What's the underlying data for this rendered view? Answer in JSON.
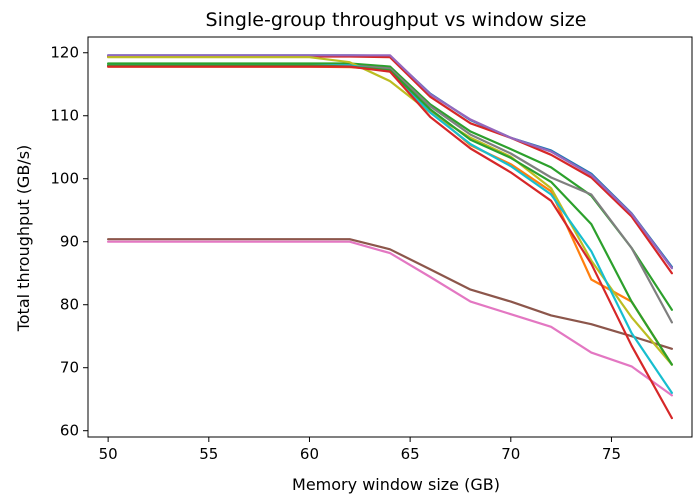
{
  "chart_data": {
    "type": "line",
    "title": "Single-group throughput vs window size",
    "xlabel": "Memory window size (GB)",
    "ylabel": "Total throughput (GB/s)",
    "xlim": [
      49,
      79
    ],
    "ylim": [
      59,
      122.5
    ],
    "xticks": [
      50,
      55,
      60,
      65,
      70,
      75
    ],
    "yticks": [
      60,
      70,
      80,
      90,
      100,
      110,
      120
    ],
    "grid": false,
    "legend": "none",
    "x": [
      50,
      52,
      54,
      56,
      58,
      60,
      62,
      64,
      66,
      68,
      70,
      72,
      74,
      76,
      78
    ],
    "series": [
      {
        "color": "#1f77b4",
        "values": [
          119.6,
          119.6,
          119.6,
          119.6,
          119.6,
          119.6,
          119.6,
          119.5,
          113.5,
          109.3,
          106.5,
          104.5,
          100.8,
          94.5,
          86.0
        ]
      },
      {
        "color": "#ff7f0e",
        "values": [
          117.8,
          117.8,
          117.8,
          117.8,
          117.8,
          117.8,
          117.7,
          117.3,
          110.8,
          105.3,
          102.3,
          98.0,
          84.0,
          80.5,
          70.5
        ]
      },
      {
        "color": "#2ca02c",
        "values": [
          118.3,
          118.3,
          118.3,
          118.3,
          118.3,
          118.3,
          118.3,
          117.8,
          111.8,
          107.5,
          104.7,
          101.8,
          97.3,
          89.0,
          79.2
        ]
      },
      {
        "color": "#d62728",
        "values": [
          119.4,
          119.4,
          119.4,
          119.4,
          119.4,
          119.4,
          119.4,
          119.3,
          113.0,
          108.8,
          106.5,
          103.8,
          100.2,
          94.0,
          85.0
        ]
      },
      {
        "color": "#9467bd",
        "values": [
          119.6,
          119.6,
          119.6,
          119.6,
          119.6,
          119.6,
          119.6,
          119.6,
          113.4,
          109.4,
          106.5,
          104.3,
          100.6,
          94.4,
          85.8
        ]
      },
      {
        "color": "#8c564b",
        "values": [
          90.4,
          90.4,
          90.4,
          90.4,
          90.4,
          90.4,
          90.4,
          88.8,
          85.6,
          82.4,
          80.5,
          78.3,
          76.9,
          75.0,
          73.0
        ]
      },
      {
        "color": "#e377c2",
        "values": [
          90.0,
          90.0,
          90.0,
          90.0,
          90.0,
          90.0,
          90.0,
          88.2,
          84.4,
          80.5,
          78.5,
          76.5,
          72.4,
          70.2,
          65.6
        ]
      },
      {
        "color": "#7f7f7f",
        "values": [
          118.0,
          118.0,
          118.0,
          118.0,
          118.0,
          118.0,
          118.0,
          117.5,
          111.5,
          107.0,
          104.0,
          100.2,
          97.5,
          89.0,
          77.2
        ]
      },
      {
        "color": "#bcbd22",
        "values": [
          119.3,
          119.3,
          119.3,
          119.3,
          119.3,
          119.3,
          118.5,
          115.5,
          110.5,
          106.5,
          103.5,
          98.5,
          87.0,
          78.0,
          70.5
        ]
      },
      {
        "color": "#17becf",
        "values": [
          118.0,
          118.0,
          118.0,
          118.0,
          118.0,
          118.0,
          118.0,
          117.0,
          110.5,
          105.5,
          102.0,
          97.5,
          88.5,
          75.5,
          66.0
        ]
      },
      {
        "color": "#2ca02c",
        "values": [
          118.0,
          118.0,
          118.0,
          118.0,
          118.0,
          118.0,
          117.8,
          117.2,
          111.0,
          106.2,
          103.3,
          99.5,
          92.8,
          80.5,
          70.5
        ]
      },
      {
        "color": "#d62728",
        "values": [
          117.8,
          117.8,
          117.8,
          117.8,
          117.8,
          117.8,
          117.8,
          117.0,
          109.8,
          104.8,
          101.0,
          96.5,
          86.5,
          73.5,
          62.0
        ]
      }
    ]
  }
}
